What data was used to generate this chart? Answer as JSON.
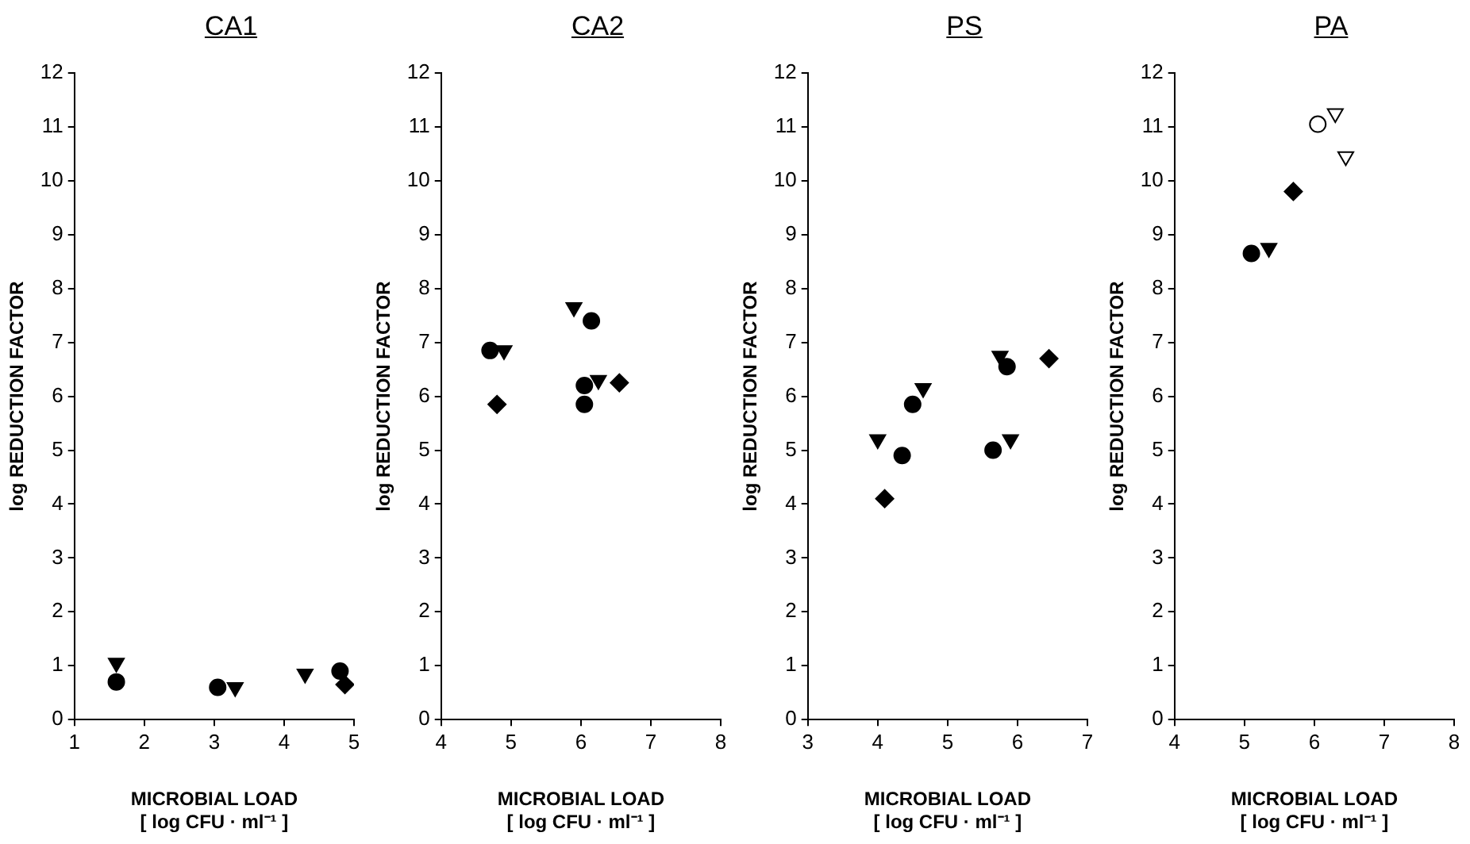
{
  "chart_data": [
    {
      "type": "scatter",
      "title": "CA1",
      "xlabel": "MICROBIAL LOAD\n[ log CFU · ml⁻¹ ]",
      "ylabel": "log REDUCTION FACTOR",
      "xlim": [
        1,
        5
      ],
      "xticks": [
        1,
        2,
        3,
        4,
        5
      ],
      "ylim": [
        0,
        12
      ],
      "yticks": [
        0,
        1,
        2,
        3,
        4,
        5,
        6,
        7,
        8,
        9,
        10,
        11,
        12
      ],
      "grid": false,
      "legend": false,
      "series": [
        {
          "marker": "circle",
          "color": "#000000",
          "x": [
            1.6,
            3.05,
            4.8
          ],
          "values": [
            0.7,
            0.6,
            0.9
          ]
        },
        {
          "marker": "triangle",
          "color": "#000000",
          "x": [
            1.6,
            3.3,
            4.3
          ],
          "values": [
            1.05,
            0.6,
            0.85
          ]
        },
        {
          "marker": "diamond",
          "color": "#000000",
          "x": [
            4.87
          ],
          "values": [
            0.65
          ]
        }
      ]
    },
    {
      "type": "scatter",
      "title": "CA2",
      "xlabel": "MICROBIAL LOAD\n[ log CFU · ml⁻¹ ]",
      "ylabel": "log REDUCTION FACTOR",
      "xlim": [
        4,
        8
      ],
      "xticks": [
        4,
        5,
        6,
        7,
        8
      ],
      "ylim": [
        0,
        12
      ],
      "yticks": [
        0,
        1,
        2,
        3,
        4,
        5,
        6,
        7,
        8,
        9,
        10,
        11,
        12
      ],
      "grid": false,
      "legend": false,
      "series": [
        {
          "marker": "circle",
          "color": "#000000",
          "x": [
            4.7,
            6.15,
            6.05,
            6.05
          ],
          "values": [
            6.85,
            7.4,
            6.2,
            5.85
          ]
        },
        {
          "marker": "triangle",
          "color": "#000000",
          "x": [
            4.9,
            5.9,
            6.25
          ],
          "values": [
            6.85,
            7.65,
            6.3
          ]
        },
        {
          "marker": "diamond",
          "color": "#000000",
          "x": [
            4.8,
            6.55
          ],
          "values": [
            5.85,
            6.25
          ]
        }
      ]
    },
    {
      "type": "scatter",
      "title": "PS",
      "xlabel": "MICROBIAL LOAD\n[ log CFU · ml⁻¹ ]",
      "ylabel": "log REDUCTION FACTOR",
      "xlim": [
        3,
        7
      ],
      "xticks": [
        3,
        4,
        5,
        6,
        7
      ],
      "ylim": [
        0,
        12
      ],
      "yticks": [
        0,
        1,
        2,
        3,
        4,
        5,
        6,
        7,
        8,
        9,
        10,
        11,
        12
      ],
      "grid": false,
      "legend": false,
      "series": [
        {
          "marker": "circle",
          "color": "#000000",
          "x": [
            4.35,
            4.5,
            5.65,
            5.85
          ],
          "values": [
            4.9,
            5.85,
            5.0,
            6.55
          ]
        },
        {
          "marker": "triangle",
          "color": "#000000",
          "x": [
            4.0,
            4.65,
            5.75,
            5.9
          ],
          "values": [
            5.2,
            6.15,
            6.75,
            5.2
          ]
        },
        {
          "marker": "diamond",
          "color": "#000000",
          "x": [
            4.1,
            6.45
          ],
          "values": [
            4.1,
            6.7
          ]
        }
      ]
    },
    {
      "type": "scatter",
      "title": "PA",
      "xlabel": "MICROBIAL LOAD\n[ log CFU · ml⁻¹ ]",
      "ylabel": "log REDUCTION FACTOR",
      "xlim": [
        4,
        8
      ],
      "xticks": [
        4,
        5,
        6,
        7,
        8
      ],
      "ylim": [
        0,
        12
      ],
      "yticks": [
        0,
        1,
        2,
        3,
        4,
        5,
        6,
        7,
        8,
        9,
        10,
        11,
        12
      ],
      "grid": false,
      "legend": false,
      "series": [
        {
          "marker": "circle",
          "color": "#000000",
          "x": [
            5.1
          ],
          "values": [
            8.65
          ]
        },
        {
          "marker": "triangle",
          "color": "#000000",
          "x": [
            5.35
          ],
          "values": [
            8.75
          ]
        },
        {
          "marker": "diamond",
          "color": "#000000",
          "x": [
            5.7
          ],
          "values": [
            9.8
          ]
        },
        {
          "marker": "circle",
          "color": "#ffffff",
          "x": [
            6.05
          ],
          "values": [
            11.05
          ]
        },
        {
          "marker": "triangle",
          "color": "#ffffff",
          "x": [
            6.3,
            6.45
          ],
          "values": [
            11.25,
            10.45
          ]
        }
      ]
    }
  ]
}
